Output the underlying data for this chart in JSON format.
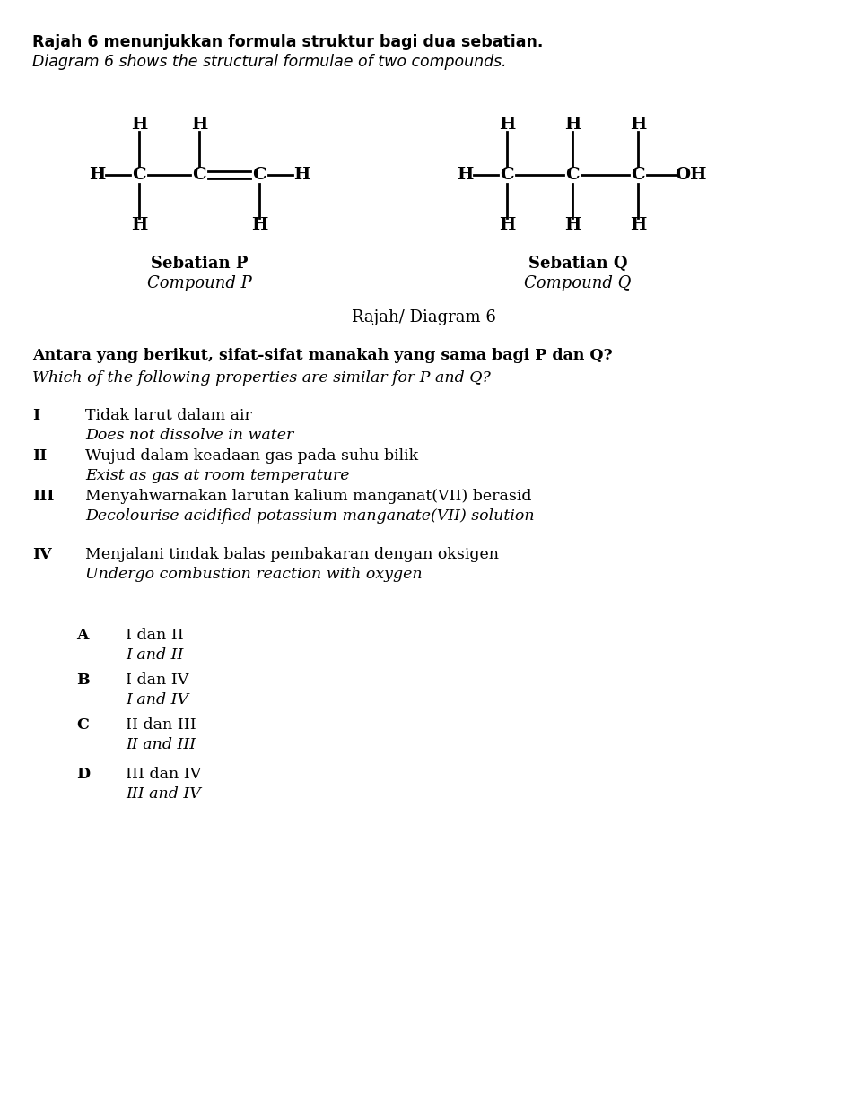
{
  "bg_color": "#ffffff",
  "title_line1": "Rajah 6 menunjukkan formula struktur bagi dua sebatian.",
  "title_line2": "Diagram 6 shows the structural formulae of two compounds.",
  "diagram_label": "Rajah/ Diagram 6",
  "compound_p_label1": "Sebatian P",
  "compound_p_label2": "Compound P",
  "compound_q_label1": "Sebatian Q",
  "compound_q_label2": "Compound Q",
  "question_line1": "Antara yang berikut, sifat-sifat manakah yang sama bagi P dan Q?",
  "question_line2": "Which of the following properties are similar for P and Q?",
  "items": [
    {
      "roman": "I",
      "text1": "Tidak larut dalam air",
      "text2": "Does not dissolve in water"
    },
    {
      "roman": "II",
      "text1": "Wujud dalam keadaan gas pada suhu bilik",
      "text2": "Exist as gas at room temperature"
    },
    {
      "roman": "III",
      "text1": "Menyahwarnakan larutan kalium manganat(VII) berasid",
      "text2": "Decolourise acidified potassium manganate(VII) solution"
    },
    {
      "roman": "IV",
      "text1": "Menjalani tindak balas pembakaran dengan oksigen",
      "text2": "Undergo combustion reaction with oxygen"
    }
  ],
  "options": [
    {
      "letter": "A",
      "text1": "I dan II",
      "text2": "I and II"
    },
    {
      "letter": "B",
      "text1": "I dan IV",
      "text2": "I and IV"
    },
    {
      "letter": "C",
      "text1": "II dan III",
      "text2": "II and III"
    },
    {
      "letter": "D",
      "text1": "III dan IV",
      "text2": "III and IV"
    }
  ],
  "fs_body": 12.5,
  "fs_formula": 14,
  "fs_label": 13
}
